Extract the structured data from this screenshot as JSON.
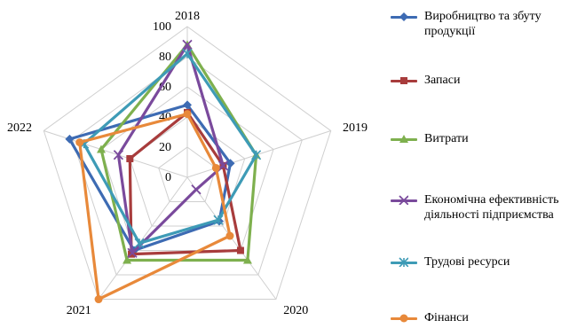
{
  "chart_data": {
    "type": "radar",
    "axes": [
      "2018",
      "2019",
      "2020",
      "2021",
      "2022"
    ],
    "scale": {
      "min": 0,
      "max": 100,
      "step": 20,
      "tick_labels": [
        "0",
        "20",
        "40",
        "60",
        "80",
        "100"
      ]
    },
    "legend_position": "right",
    "series": [
      {
        "name": "Виробництво та збуту продукції",
        "color": "#3D6BB3",
        "marker": "diamond",
        "values": [
          48,
          30,
          36,
          60,
          82
        ]
      },
      {
        "name": "Запаси",
        "color": "#A83C3C",
        "marker": "square",
        "values": [
          43,
          25,
          60,
          63,
          40
        ]
      },
      {
        "name": "Витрати",
        "color": "#7EB04E",
        "marker": "triangle",
        "values": [
          88,
          48,
          68,
          68,
          60
        ]
      },
      {
        "name": "Економічна ефективність діяльності підприємства",
        "color": "#7A4A9C",
        "marker": "x",
        "values": [
          88,
          25,
          10,
          62,
          48
        ]
      },
      {
        "name": "Трудові ресурси",
        "color": "#3E9BB6",
        "marker": "asterisk",
        "values": [
          82,
          48,
          35,
          54,
          72
        ]
      },
      {
        "name": "Фінанси",
        "color": "#E8893A",
        "marker": "circle",
        "values": [
          42,
          20,
          48,
          100,
          75
        ]
      }
    ]
  }
}
